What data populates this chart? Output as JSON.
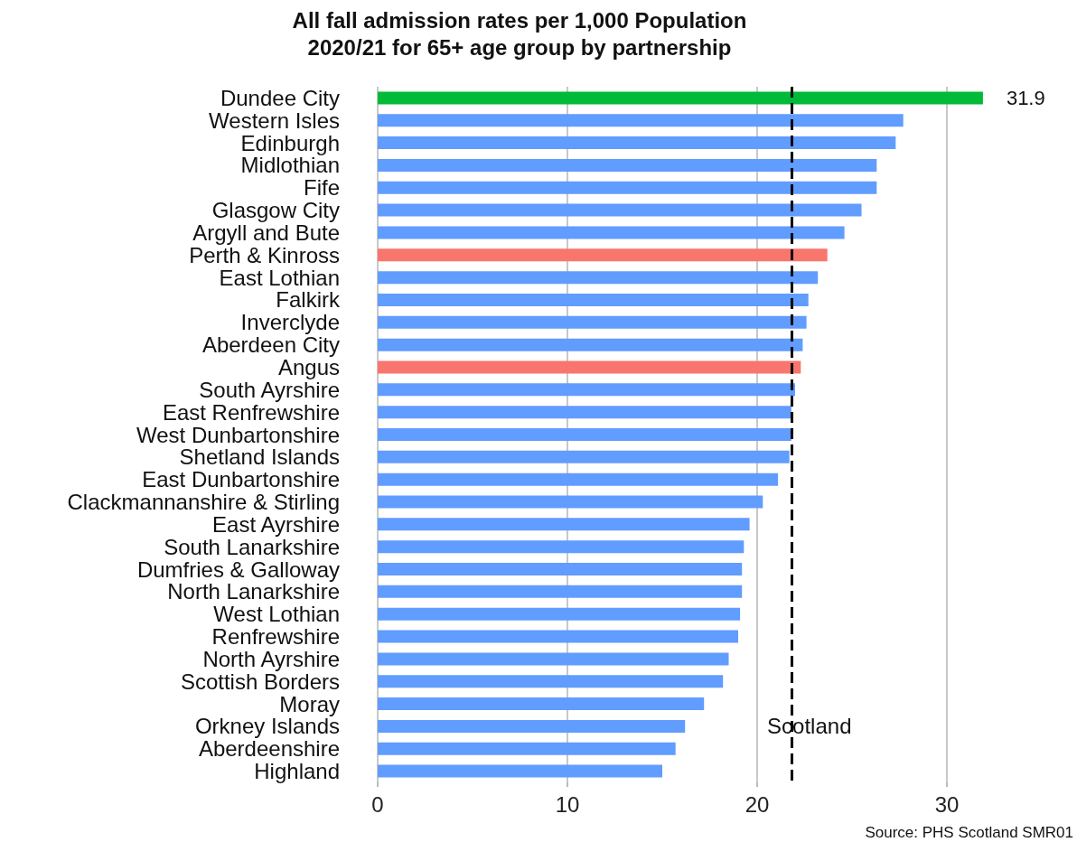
{
  "chart_data": {
    "type": "bar",
    "orientation": "horizontal",
    "title": "All fall admission rates per 1,000 Population\n2020/21 for 65+ age group by partnership",
    "categories": [
      "Dundee City",
      "Western Isles",
      "Edinburgh",
      "Midlothian",
      "Fife",
      "Glasgow City",
      "Argyll and Bute",
      "Perth & Kinross",
      "East Lothian",
      "Falkirk",
      "Inverclyde",
      "Aberdeen City",
      "Angus",
      "South Ayrshire",
      "East Renfrewshire",
      "West Dunbartonshire",
      "Shetland Islands",
      "East Dunbartonshire",
      "Clackmannanshire & Stirling",
      "East Ayrshire",
      "South Lanarkshire",
      "Dumfries & Galloway",
      "North Lanarkshire",
      "West Lothian",
      "Renfrewshire",
      "North Ayrshire",
      "Scottish Borders",
      "Moray",
      "Orkney Islands",
      "Aberdeenshire",
      "Highland"
    ],
    "values": [
      31.9,
      27.7,
      27.3,
      26.3,
      26.3,
      25.5,
      24.6,
      23.7,
      23.2,
      22.7,
      22.6,
      22.4,
      22.3,
      22.0,
      21.8,
      21.8,
      21.7,
      21.1,
      20.3,
      19.6,
      19.3,
      19.2,
      19.2,
      19.1,
      19.0,
      18.5,
      18.2,
      17.2,
      16.2,
      15.7,
      15.0
    ],
    "colors": [
      "#00ba38",
      "#619cff",
      "#619cff",
      "#619cff",
      "#619cff",
      "#619cff",
      "#619cff",
      "#f8766d",
      "#619cff",
      "#619cff",
      "#619cff",
      "#619cff",
      "#f8766d",
      "#619cff",
      "#619cff",
      "#619cff",
      "#619cff",
      "#619cff",
      "#619cff",
      "#619cff",
      "#619cff",
      "#619cff",
      "#619cff",
      "#619cff",
      "#619cff",
      "#619cff",
      "#619cff",
      "#619cff",
      "#619cff",
      "#619cff",
      "#619cff"
    ],
    "value_labels": [
      "31.9",
      null,
      null,
      null,
      null,
      null,
      null,
      null,
      null,
      null,
      null,
      null,
      null,
      null,
      null,
      null,
      null,
      null,
      null,
      null,
      null,
      null,
      null,
      null,
      null,
      null,
      null,
      null,
      null,
      null,
      null
    ],
    "xlim": [
      0,
      32
    ],
    "xticks": [
      0,
      10,
      20,
      30
    ],
    "grid": "x",
    "ref_lines": [
      {
        "axis": "x",
        "value": 21.8,
        "label": "Scotland",
        "color": "#000000",
        "line_style": "dashed"
      }
    ],
    "annotations": [
      "Source: PHS Scotland SMR01"
    ]
  }
}
